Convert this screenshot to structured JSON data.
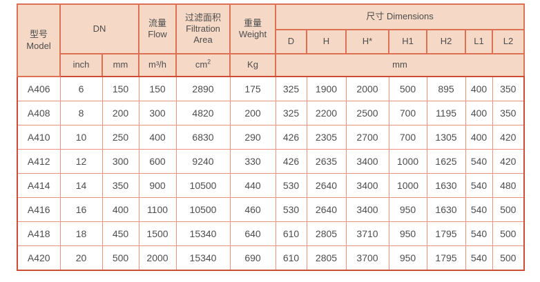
{
  "colors": {
    "header_bg": "#f5d8c5",
    "border_strong": "#cc4b33",
    "border_header": "#dd6f52",
    "border_light": "#ef9181",
    "text": "#4d4d4d"
  },
  "table": {
    "header": {
      "model_zh": "型号",
      "model_en": "Model",
      "dn": "DN",
      "flow_zh": "流量",
      "flow_en": "Flow",
      "filtration_zh": "过滤面积",
      "filtration_en1": "Filtration",
      "filtration_en2": "Area",
      "weight_zh": "重量",
      "weight_en": "Weight",
      "dimensions": "尺寸 Dimensions",
      "dim_cols": [
        "D",
        "H",
        "H*",
        "H1",
        "H2",
        "L1",
        "L2"
      ],
      "units": {
        "inch": "inch",
        "mm": "mm",
        "flow": "m³/h",
        "area_base": "cm",
        "area_sup": "2",
        "weight": "Kg",
        "dim": "mm"
      }
    },
    "columns": [
      "model",
      "dn_inch",
      "dn_mm",
      "flow",
      "area",
      "weight",
      "d",
      "h",
      "h_star",
      "h1",
      "h2",
      "l1",
      "l2"
    ],
    "rows": [
      {
        "model": "A406",
        "dn_inch": "6",
        "dn_mm": "150",
        "flow": "150",
        "area": "2890",
        "weight": "175",
        "d": "325",
        "h": "1900",
        "h_star": "2000",
        "h1": "500",
        "h2": "895",
        "l1": "400",
        "l2": "350"
      },
      {
        "model": "A408",
        "dn_inch": "8",
        "dn_mm": "200",
        "flow": "300",
        "area": "4820",
        "weight": "200",
        "d": "325",
        "h": "2200",
        "h_star": "2500",
        "h1": "700",
        "h2": "1195",
        "l1": "400",
        "l2": "350"
      },
      {
        "model": "A410",
        "dn_inch": "10",
        "dn_mm": "250",
        "flow": "400",
        "area": "6830",
        "weight": "290",
        "d": "426",
        "h": "2305",
        "h_star": "2700",
        "h1": "700",
        "h2": "1305",
        "l1": "400",
        "l2": "420"
      },
      {
        "model": "A412",
        "dn_inch": "12",
        "dn_mm": "300",
        "flow": "600",
        "area": "9240",
        "weight": "330",
        "d": "426",
        "h": "2635",
        "h_star": "3400",
        "h1": "1000",
        "h2": "1625",
        "l1": "540",
        "l2": "420"
      },
      {
        "model": "A414",
        "dn_inch": "14",
        "dn_mm": "350",
        "flow": "900",
        "area": "10500",
        "weight": "440",
        "d": "530",
        "h": "2640",
        "h_star": "3400",
        "h1": "1000",
        "h2": "1630",
        "l1": "540",
        "l2": "480"
      },
      {
        "model": "A416",
        "dn_inch": "16",
        "dn_mm": "400",
        "flow": "1100",
        "area": "10500",
        "weight": "460",
        "d": "530",
        "h": "2640",
        "h_star": "3400",
        "h1": "950",
        "h2": "1630",
        "l1": "540",
        "l2": "500"
      },
      {
        "model": "A418",
        "dn_inch": "18",
        "dn_mm": "450",
        "flow": "1500",
        "area": "15340",
        "weight": "640",
        "d": "610",
        "h": "2805",
        "h_star": "3710",
        "h1": "950",
        "h2": "1795",
        "l1": "540",
        "l2": "500"
      },
      {
        "model": "A420",
        "dn_inch": "20",
        "dn_mm": "500",
        "flow": "2000",
        "area": "15340",
        "weight": "690",
        "d": "610",
        "h": "2805",
        "h_star": "3700",
        "h1": "950",
        "h2": "1795",
        "l1": "540",
        "l2": "500"
      }
    ]
  }
}
